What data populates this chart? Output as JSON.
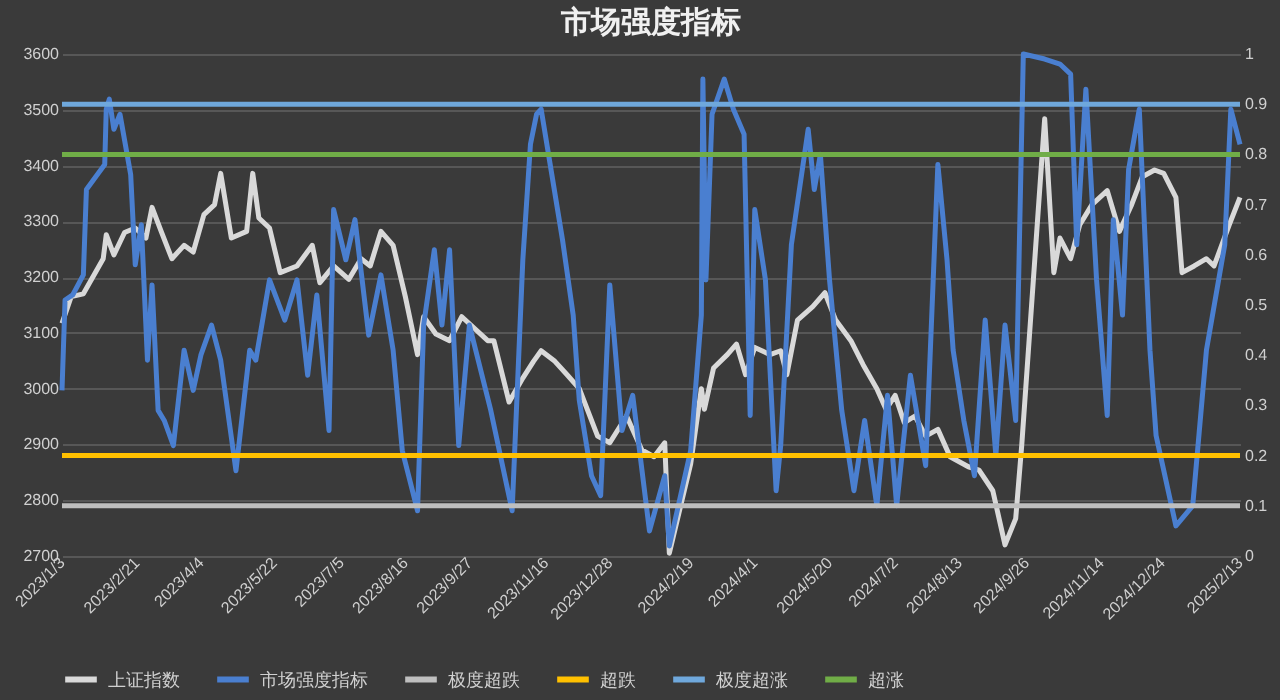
{
  "chart_data": {
    "type": "line",
    "title": "市场强度指标",
    "grid": "y",
    "legend": "bottom",
    "xlim": [
      "2023-01-03",
      "2025-02-13"
    ],
    "xticks": [
      {
        "value": "2023-01-03",
        "label": "2023/1/3"
      },
      {
        "value": "2023-02-21",
        "label": "2023/2/21"
      },
      {
        "value": "2023-04-04",
        "label": "2023/4/4"
      },
      {
        "value": "2023-05-22",
        "label": "2023/5/22"
      },
      {
        "value": "2023-07-05",
        "label": "2023/7/5"
      },
      {
        "value": "2023-08-16",
        "label": "2023/8/16"
      },
      {
        "value": "2023-09-27",
        "label": "2023/9/27"
      },
      {
        "value": "2023-11-16",
        "label": "2023/11/16"
      },
      {
        "value": "2023-12-28",
        "label": "2023/12/28"
      },
      {
        "value": "2024-02-19",
        "label": "2024/2/19"
      },
      {
        "value": "2024-04-01",
        "label": "2024/4/1"
      },
      {
        "value": "2024-05-20",
        "label": "2024/5/20"
      },
      {
        "value": "2024-07-02",
        "label": "2024/7/2"
      },
      {
        "value": "2024-08-13",
        "label": "2024/8/13"
      },
      {
        "value": "2024-09-26",
        "label": "2024/9/26"
      },
      {
        "value": "2024-11-14",
        "label": "2024/11/14"
      },
      {
        "value": "2024-12-24",
        "label": "2024/12/24"
      },
      {
        "value": "2025-02-13",
        "label": "2025/2/13"
      }
    ],
    "ylim": [
      2700,
      3600
    ],
    "yticks": [
      2700,
      2800,
      2900,
      3000,
      3100,
      3200,
      3300,
      3400,
      3500,
      3600
    ],
    "y2lim": [
      0,
      1
    ],
    "y2ticks": [
      0,
      0.1,
      0.2,
      0.3,
      0.4,
      0.5,
      0.6,
      0.7,
      0.8,
      0.9,
      1
    ],
    "series": [
      {
        "name": "上证指数",
        "color": "#d9d9d9",
        "x": [
          "2023-01-03",
          "2023-01-09",
          "2023-01-17",
          "2023-01-30",
          "2023-02-01",
          "2023-02-06",
          "2023-02-13",
          "2023-02-20",
          "2023-02-27",
          "2023-03-03",
          "2023-03-09",
          "2023-03-16",
          "2023-03-24",
          "2023-03-30",
          "2023-04-06",
          "2023-04-13",
          "2023-04-17",
          "2023-04-24",
          "2023-05-04",
          "2023-05-08",
          "2023-05-12",
          "2023-05-19",
          "2023-05-26",
          "2023-06-06",
          "2023-06-16",
          "2023-06-21",
          "2023-06-30",
          "2023-07-10",
          "2023-07-18",
          "2023-07-24",
          "2023-07-31",
          "2023-08-08",
          "2023-08-16",
          "2023-08-24",
          "2023-08-28",
          "2023-09-05",
          "2023-09-14",
          "2023-09-22",
          "2023-10-09",
          "2023-10-13",
          "2023-10-23",
          "2023-11-01",
          "2023-11-08",
          "2023-11-13",
          "2023-11-22",
          "2023-11-30",
          "2023-12-08",
          "2023-12-20",
          "2023-12-28",
          "2024-01-08",
          "2024-01-18",
          "2024-01-26",
          "2024-02-02",
          "2024-02-05",
          "2024-02-19",
          "2024-02-26",
          "2024-02-28",
          "2024-03-05",
          "2024-03-14",
          "2024-03-20",
          "2024-03-26",
          "2024-04-01",
          "2024-04-11",
          "2024-04-18",
          "2024-04-22",
          "2024-04-29",
          "2024-05-09",
          "2024-05-17",
          "2024-05-24",
          "2024-06-03",
          "2024-06-11",
          "2024-06-20",
          "2024-06-26",
          "2024-07-02",
          "2024-07-08",
          "2024-07-15",
          "2024-07-22",
          "2024-07-30",
          "2024-08-07",
          "2024-08-19",
          "2024-08-26",
          "2024-09-04",
          "2024-09-12",
          "2024-09-19",
          "2024-09-23",
          "2024-10-08",
          "2024-10-14",
          "2024-10-18",
          "2024-10-25",
          "2024-10-31",
          "2024-11-08",
          "2024-11-18",
          "2024-11-26",
          "2024-12-04",
          "2024-12-11",
          "2024-12-19",
          "2024-12-25",
          "2025-01-02",
          "2025-01-06",
          "2025-01-14",
          "2025-01-22",
          "2025-01-27",
          "2025-02-06",
          "2025-02-13"
        ],
        "values": [
          3117,
          3165,
          3170,
          3233,
          3276,
          3240,
          3280,
          3288,
          3270,
          3325,
          3282,
          3233,
          3257,
          3245,
          3312,
          3330,
          3386,
          3270,
          3282,
          3386,
          3306,
          3288,
          3208,
          3220,
          3257,
          3190,
          3220,
          3196,
          3233,
          3220,
          3282,
          3257,
          3165,
          3061,
          3129,
          3098,
          3086,
          3129,
          3086,
          3086,
          2976,
          3019,
          3049,
          3068,
          3049,
          3025,
          3000,
          2915,
          2903,
          2951,
          2890,
          2878,
          2903,
          2705,
          2865,
          3000,
          2963,
          3037,
          3061,
          3080,
          3025,
          3074,
          3061,
          3068,
          3025,
          3123,
          3147,
          3172,
          3123,
          3086,
          3043,
          3000,
          2963,
          2988,
          2939,
          2951,
          2915,
          2927,
          2878,
          2860,
          2854,
          2817,
          2720,
          2767,
          2900,
          3484,
          3208,
          3270,
          3233,
          3294,
          3330,
          3355,
          3282,
          3330,
          3380,
          3392,
          3386,
          3343,
          3208,
          3220,
          3233,
          3220,
          3294,
          3343
        ]
      },
      {
        "name": "市场强度指标",
        "color": "#4a7fd0",
        "axis": "y2",
        "x": [
          "2023-01-03",
          "2023-01-05",
          "2023-01-10",
          "2023-01-17",
          "2023-01-19",
          "2023-01-31",
          "2023-02-01",
          "2023-02-03",
          "2023-02-06",
          "2023-02-10",
          "2023-02-17",
          "2023-02-20",
          "2023-02-24",
          "2023-02-28",
          "2023-03-03",
          "2023-03-07",
          "2023-03-11",
          "2023-03-17",
          "2023-03-24",
          "2023-03-30",
          "2023-04-04",
          "2023-04-11",
          "2023-04-17",
          "2023-04-27",
          "2023-05-06",
          "2023-05-10",
          "2023-05-19",
          "2023-05-29",
          "2023-06-06",
          "2023-06-13",
          "2023-06-19",
          "2023-06-27",
          "2023-06-30",
          "2023-07-08",
          "2023-07-14",
          "2023-07-23",
          "2023-07-31",
          "2023-08-08",
          "2023-08-14",
          "2023-08-24",
          "2023-08-28",
          "2023-09-04",
          "2023-09-09",
          "2023-09-14",
          "2023-09-20",
          "2023-09-27",
          "2023-10-11",
          "2023-10-25",
          "2023-11-01",
          "2023-11-06",
          "2023-11-10",
          "2023-11-13",
          "2023-11-20",
          "2023-11-27",
          "2023-12-04",
          "2023-12-08",
          "2023-12-16",
          "2023-12-22",
          "2023-12-28",
          "2024-01-05",
          "2024-01-12",
          "2024-01-23",
          "2024-02-02",
          "2024-02-05",
          "2024-02-19",
          "2024-02-26",
          "2024-02-27",
          "2024-02-29",
          "2024-03-04",
          "2024-03-12",
          "2024-03-18",
          "2024-03-25",
          "2024-03-29",
          "2024-04-01",
          "2024-04-08",
          "2024-04-15",
          "2024-04-18",
          "2024-04-25",
          "2024-05-06",
          "2024-05-10",
          "2024-05-14",
          "2024-05-20",
          "2024-05-28",
          "2024-06-05",
          "2024-06-12",
          "2024-06-20",
          "2024-06-27",
          "2024-07-03",
          "2024-07-12",
          "2024-07-17",
          "2024-07-22",
          "2024-07-30",
          "2024-08-05",
          "2024-08-09",
          "2024-08-16",
          "2024-08-23",
          "2024-08-30",
          "2024-09-06",
          "2024-09-12",
          "2024-09-19",
          "2024-09-24",
          "2024-10-08",
          "2024-10-18",
          "2024-10-25",
          "2024-10-29",
          "2024-11-04",
          "2024-11-11",
          "2024-11-18",
          "2024-11-22",
          "2024-11-28",
          "2024-12-02",
          "2024-12-09",
          "2024-12-16",
          "2024-12-20",
          "2025-01-02",
          "2025-01-13",
          "2025-01-22",
          "2025-02-03",
          "2025-02-07",
          "2025-02-13"
        ],
        "values": [
          0.33,
          0.51,
          0.52,
          0.56,
          0.73,
          0.78,
          0.89,
          0.91,
          0.85,
          0.88,
          0.76,
          0.58,
          0.66,
          0.39,
          0.54,
          0.29,
          0.27,
          0.22,
          0.41,
          0.33,
          0.4,
          0.46,
          0.39,
          0.17,
          0.41,
          0.39,
          0.55,
          0.47,
          0.55,
          0.36,
          0.52,
          0.25,
          0.69,
          0.59,
          0.67,
          0.44,
          0.56,
          0.41,
          0.21,
          0.09,
          0.46,
          0.61,
          0.46,
          0.61,
          0.22,
          0.46,
          0.29,
          0.09,
          0.59,
          0.82,
          0.88,
          0.89,
          0.76,
          0.63,
          0.48,
          0.31,
          0.16,
          0.12,
          0.54,
          0.25,
          0.32,
          0.05,
          0.16,
          0.02,
          0.21,
          0.48,
          0.95,
          0.55,
          0.88,
          0.95,
          0.89,
          0.84,
          0.28,
          0.69,
          0.55,
          0.13,
          0.22,
          0.62,
          0.85,
          0.73,
          0.8,
          0.55,
          0.29,
          0.13,
          0.27,
          0.1,
          0.32,
          0.1,
          0.36,
          0.27,
          0.18,
          0.78,
          0.59,
          0.41,
          0.27,
          0.16,
          0.47,
          0.2,
          0.46,
          0.27,
          1.0,
          0.99,
          0.98,
          0.96,
          0.62,
          0.93,
          0.55,
          0.28,
          0.67,
          0.48,
          0.77,
          0.89,
          0.41,
          0.24,
          0.06,
          0.1,
          0.41,
          0.62,
          0.89,
          0.82
        ]
      }
    ],
    "ref_lines": [
      {
        "axis": "y2",
        "value": 0.1,
        "label": "极度超跌",
        "color": "#bfbfbf"
      },
      {
        "axis": "y2",
        "value": 0.2,
        "label": "超跌",
        "color": "#ffc000"
      },
      {
        "axis": "y2",
        "value": 0.9,
        "label": "极度超涨",
        "color": "#6fa8dc"
      },
      {
        "axis": "y2",
        "value": 0.8,
        "label": "超涨",
        "color": "#70ad47"
      }
    ]
  }
}
